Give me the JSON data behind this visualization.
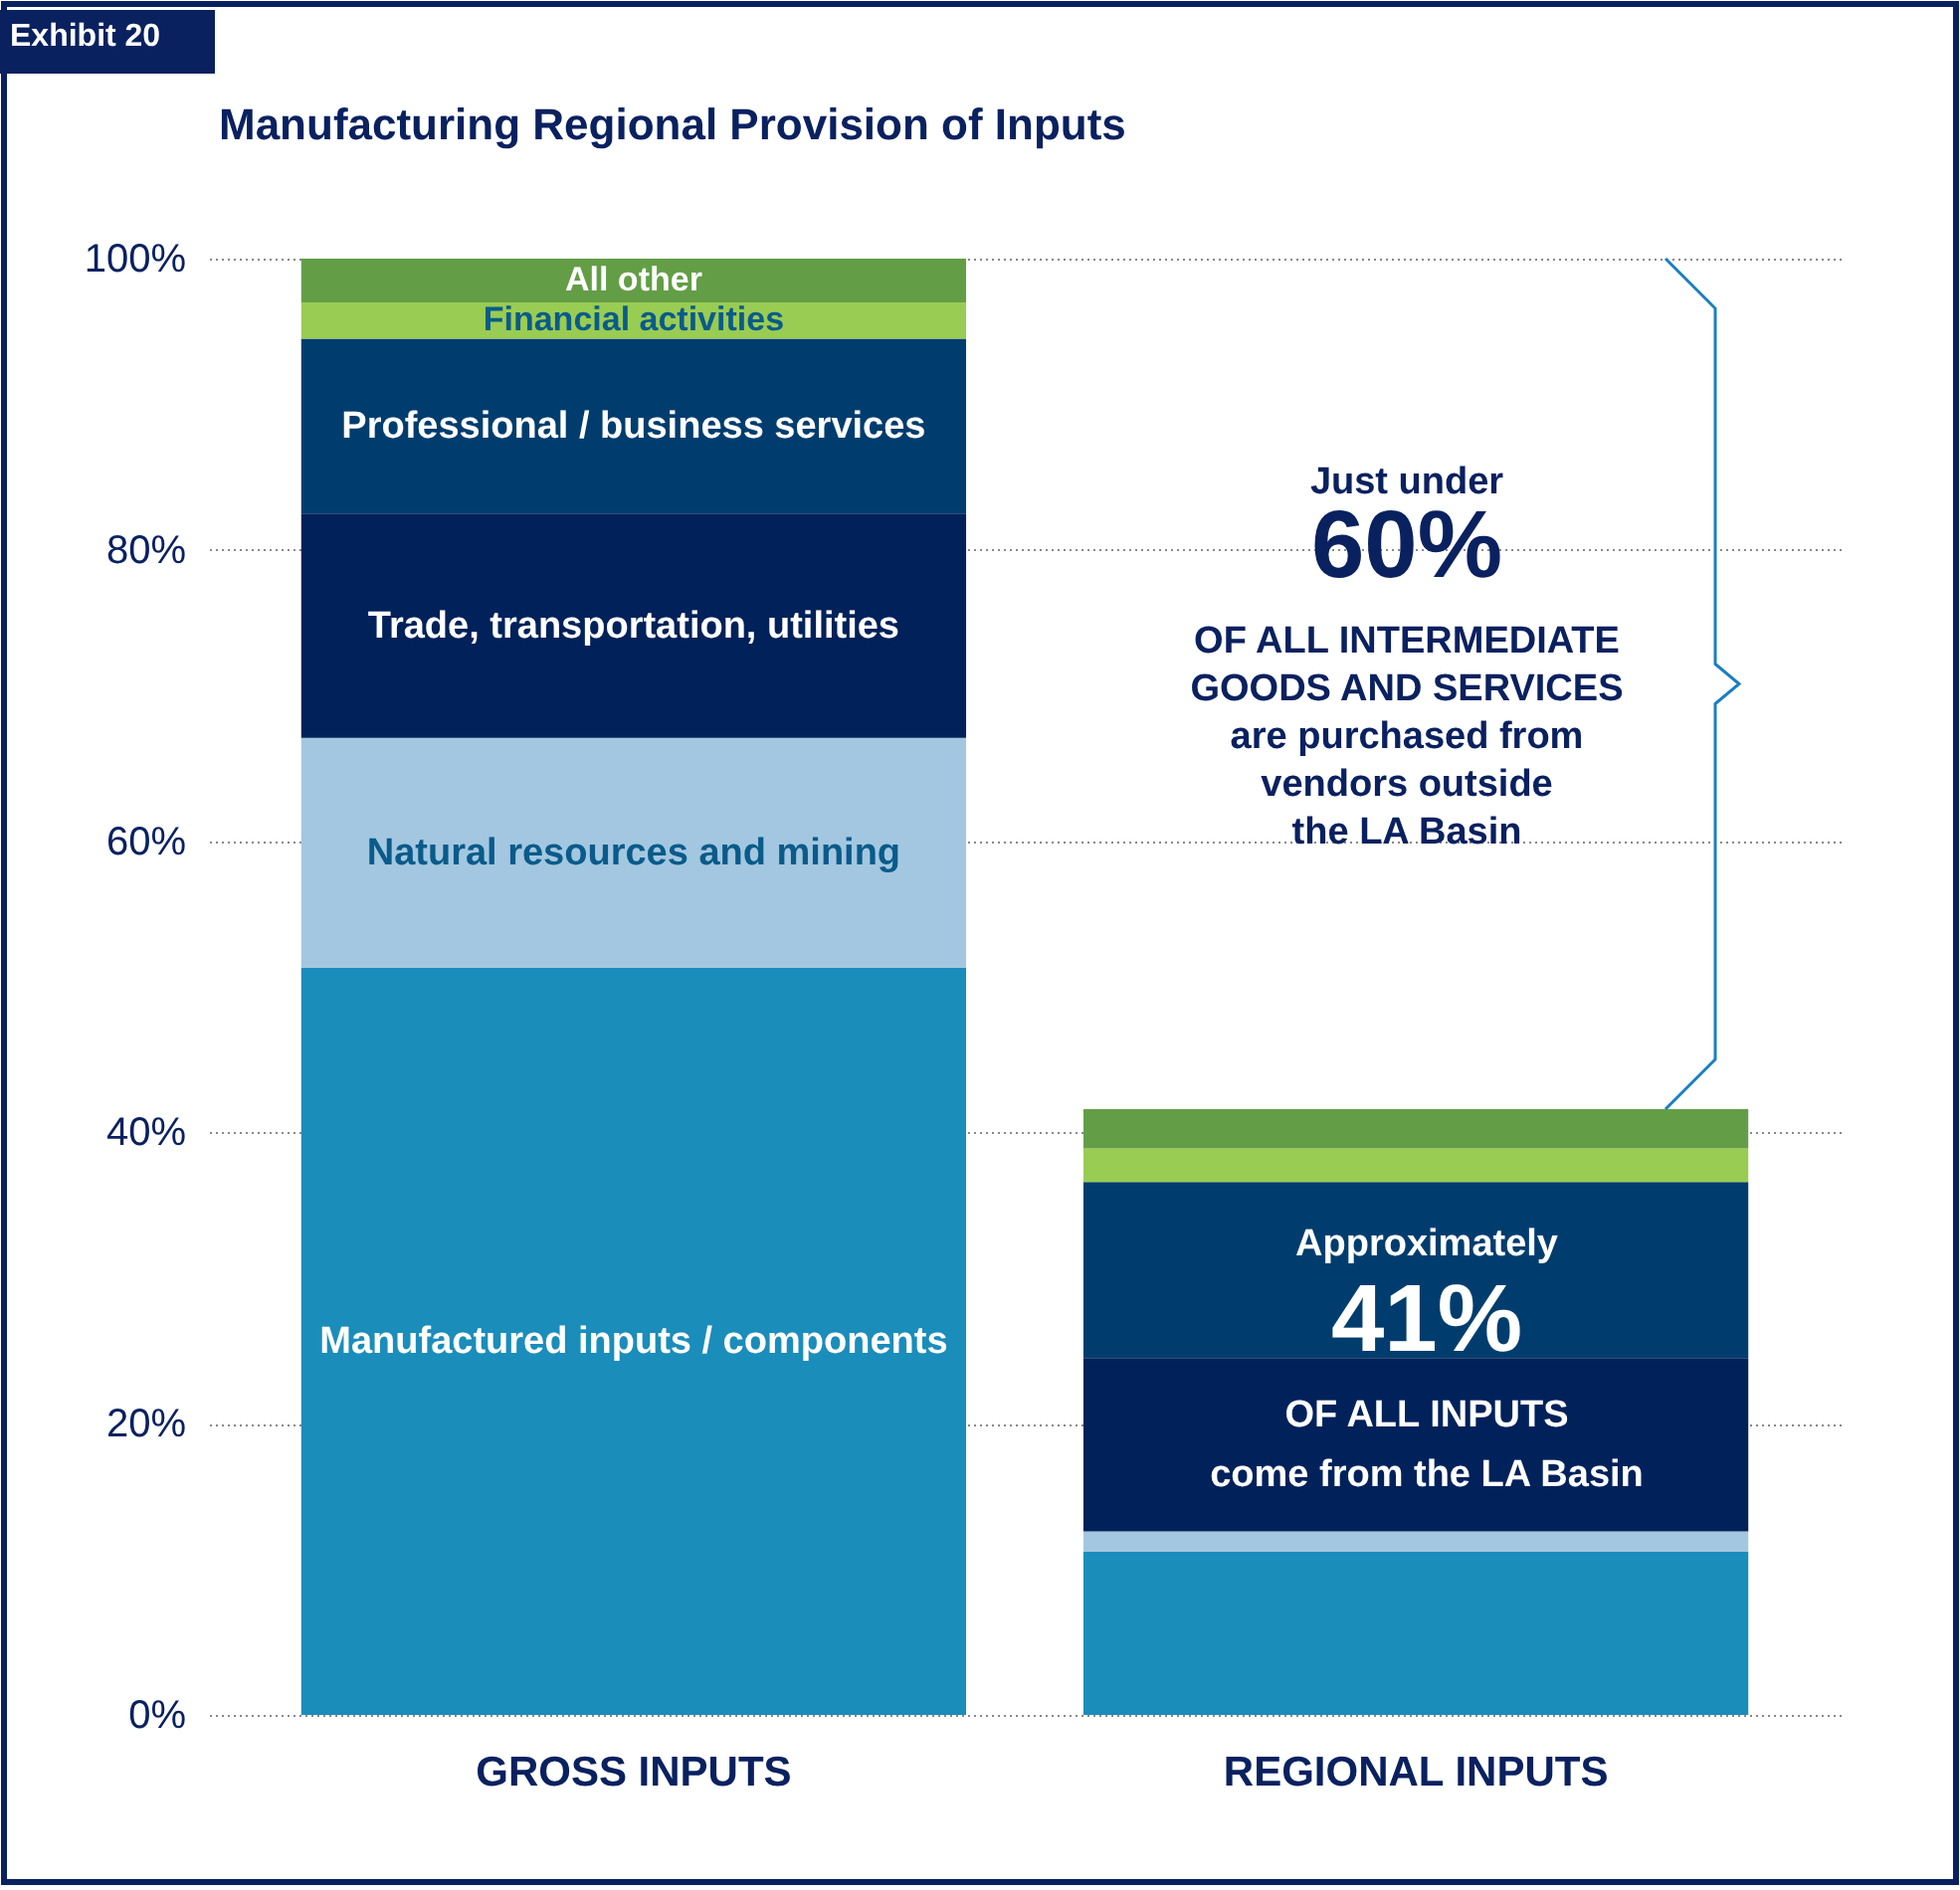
{
  "chart_data": {
    "type": "bar",
    "title": "Manufacturing Regional Provision of Inputs",
    "categories": [
      "GROSS INPUTS",
      "REGIONAL INPUTS"
    ],
    "stacked": true,
    "series": [
      {
        "name": "Manufactured inputs / components",
        "color": "#1a8dbb",
        "values": [
          51.3,
          11.2
        ]
      },
      {
        "name": "Natural resources and mining",
        "color": "#a3c7e0",
        "values": [
          15.8,
          1.4
        ]
      },
      {
        "name": "Trade, transportation, utilities",
        "color": "#00215a",
        "values": [
          15.4,
          11.9
        ]
      },
      {
        "name": "Professional / business services",
        "color": "#003d6e",
        "values": [
          12.0,
          12.1
        ]
      },
      {
        "name": "Financial activities",
        "color": "#99cc52",
        "values": [
          2.5,
          2.3
        ]
      },
      {
        "name": "All other",
        "color": "#639e47",
        "values": [
          3.0,
          2.7
        ]
      }
    ],
    "ylim": [
      0,
      100
    ],
    "yticks": [
      {
        "value": 0,
        "label": "0%"
      },
      {
        "value": 20,
        "label": "20%"
      },
      {
        "value": 40,
        "label": "40%"
      },
      {
        "value": 60,
        "label": "60%"
      },
      {
        "value": 80,
        "label": "80%"
      },
      {
        "value": 100,
        "label": "100%"
      }
    ],
    "grid": "y",
    "legend": false,
    "annotations": [
      "Exhibit 20",
      "Just under\n60%\nOF ALL INTERMEDIATE\nGOODS AND SERVICES\nare purchased from\nvendors outside\nthe LA Basin",
      "Approximately\n41%\nOF ALL INPUTS\ncome from the LA Basin"
    ]
  }
}
